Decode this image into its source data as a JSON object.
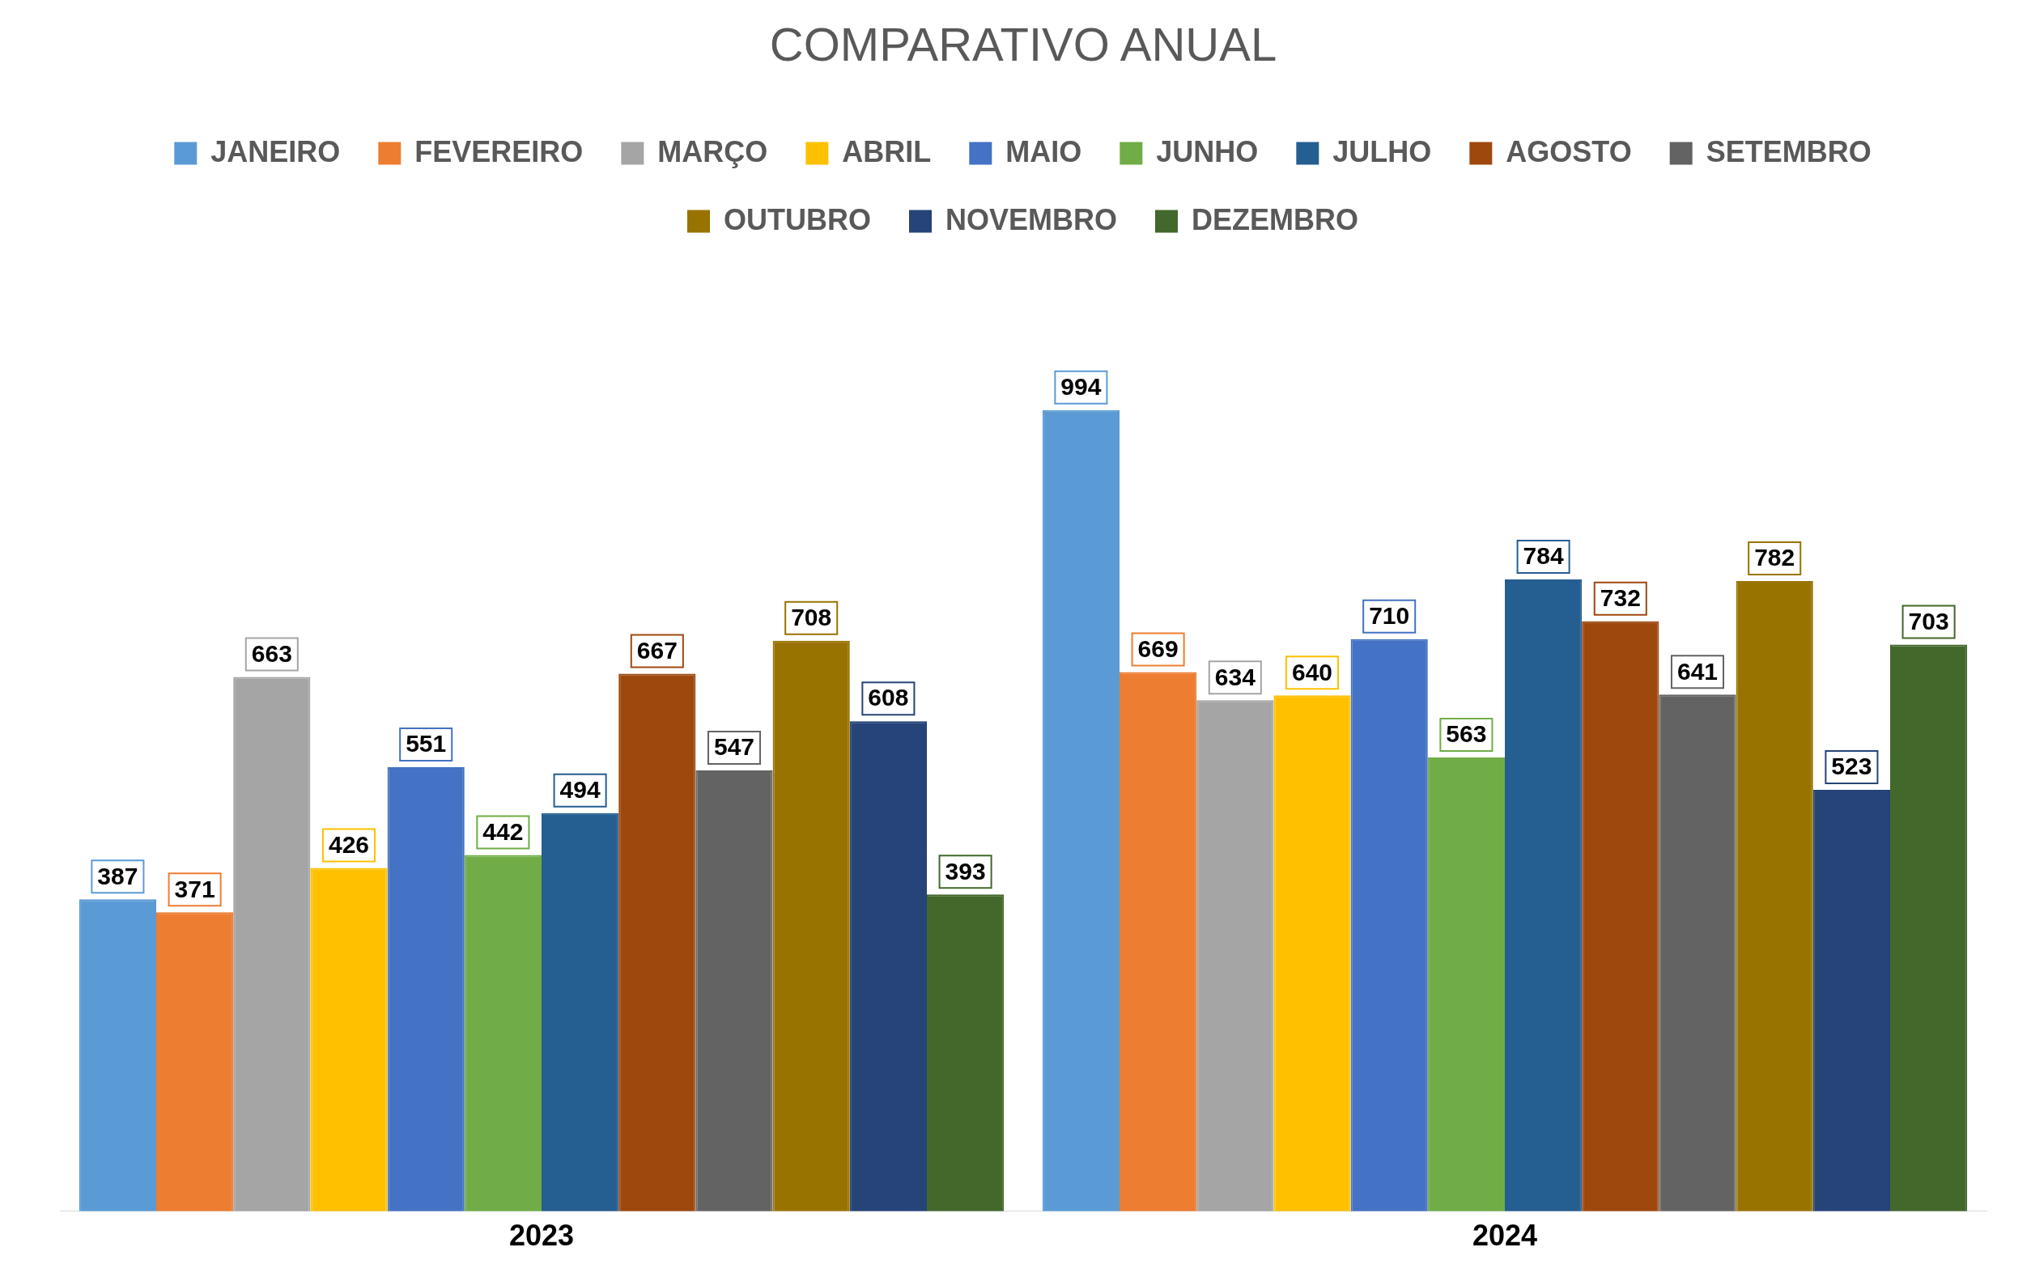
{
  "chart_data": {
    "type": "bar",
    "title": "COMPARATIVO ANUAL",
    "categories": [
      "2023",
      "2024"
    ],
    "legend": "top",
    "grid": false,
    "data_labels": true,
    "series": [
      {
        "name": "JANEIRO",
        "color": "#5b9bd5",
        "values": [
          387,
          994
        ]
      },
      {
        "name": "FEVEREIRO",
        "color": "#ed7d31",
        "values": [
          371,
          669
        ]
      },
      {
        "name": "MARÇO",
        "color": "#a5a5a5",
        "values": [
          663,
          634
        ]
      },
      {
        "name": "ABRIL",
        "color": "#ffc000",
        "values": [
          426,
          640
        ]
      },
      {
        "name": "MAIO",
        "color": "#4472c4",
        "values": [
          551,
          710
        ]
      },
      {
        "name": "JUNHO",
        "color": "#70ad47",
        "values": [
          442,
          563
        ]
      },
      {
        "name": "JULHO",
        "color": "#255e91",
        "values": [
          494,
          784
        ]
      },
      {
        "name": "AGOSTO",
        "color": "#9e480e",
        "values": [
          667,
          732
        ]
      },
      {
        "name": "SETEMBRO",
        "color": "#636363",
        "values": [
          547,
          641
        ]
      },
      {
        "name": "OUTUBRO",
        "color": "#997300",
        "values": [
          708,
          782
        ]
      },
      {
        "name": "NOVEMBRO",
        "color": "#264478",
        "values": [
          608,
          523
        ]
      },
      {
        "name": "DEZEMBRO",
        "color": "#43682b",
        "values": [
          393,
          703
        ]
      }
    ]
  }
}
